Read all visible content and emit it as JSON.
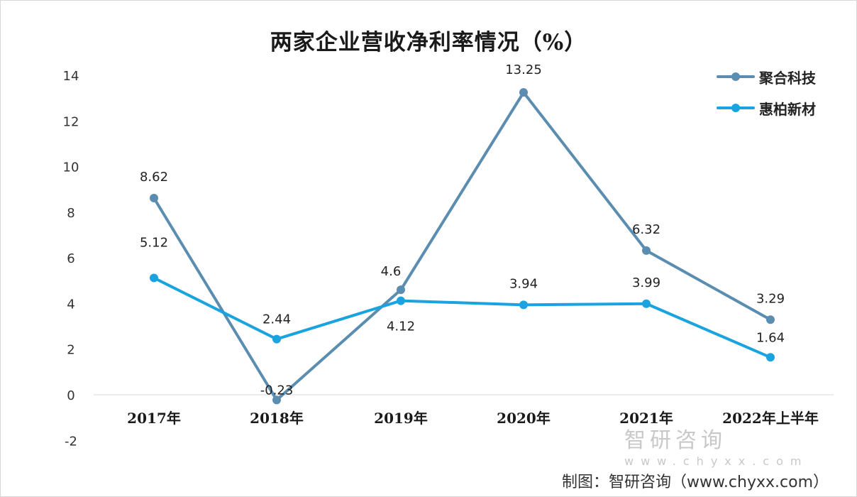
{
  "chart_data": {
    "type": "line",
    "title": "两家企业营收净利率情况（%）",
    "categories": [
      "2017年",
      "2018年",
      "2019年",
      "2020年",
      "2021年",
      "2022年上半年"
    ],
    "series": [
      {
        "name": "聚合科技",
        "color": "#5a8db0",
        "values": [
          8.62,
          -0.23,
          4.6,
          13.25,
          6.32,
          3.29
        ],
        "labels": [
          "8.62",
          "-0.23",
          "4.6",
          "13.25",
          "6.32",
          "3.29"
        ]
      },
      {
        "name": "惠柏新材",
        "color": "#1ba3df",
        "values": [
          5.12,
          2.44,
          4.12,
          3.94,
          3.99,
          1.64
        ],
        "labels": [
          "5.12",
          "2.44",
          "4.12",
          "3.94",
          "3.99",
          "1.64"
        ]
      }
    ],
    "ylim": [
      -2,
      14
    ],
    "yticks": [
      "-2",
      "0",
      "2",
      "4",
      "6",
      "8",
      "10",
      "12",
      "14"
    ],
    "legend": "top-right",
    "grid": false
  },
  "credit": "制图：智研咨询（www.chyxx.com）",
  "watermark": {
    "name": "智研咨询",
    "url": "www.chyxx.com"
  }
}
